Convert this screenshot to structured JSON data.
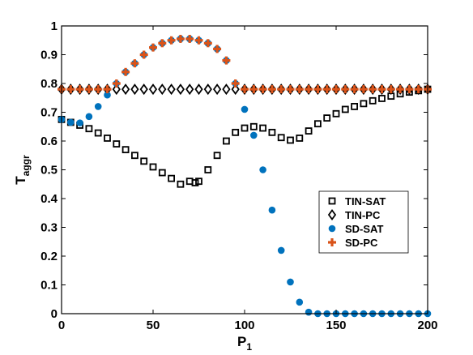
{
  "chart_data": {
    "type": "scatter",
    "xlabel": "P",
    "xlabel_sub": "1",
    "ylabel": "T",
    "ylabel_sub": "aggr",
    "xlim": [
      0,
      200
    ],
    "ylim": [
      0,
      1
    ],
    "xticks": [
      "0",
      "50",
      "100",
      "150",
      "200"
    ],
    "yticks": [
      "0",
      "0.1",
      "0.2",
      "0.3",
      "0.4",
      "0.5",
      "0.6",
      "0.7",
      "0.8",
      "0.9",
      "1"
    ],
    "grid": false,
    "legend_position": "lower-right",
    "series": [
      {
        "name": "TIN-SAT",
        "marker": "square-open",
        "color": "#000000",
        "x": [
          0,
          5,
          10,
          15,
          20,
          25,
          30,
          35,
          40,
          45,
          50,
          55,
          60,
          65,
          70,
          73,
          75,
          80,
          85,
          90,
          95,
          100,
          105,
          110,
          115,
          120,
          125,
          130,
          135,
          140,
          145,
          150,
          155,
          160,
          165,
          170,
          175,
          180,
          185,
          190,
          195,
          200
        ],
        "y": [
          0.675,
          0.665,
          0.655,
          0.643,
          0.628,
          0.61,
          0.59,
          0.57,
          0.55,
          0.53,
          0.51,
          0.49,
          0.47,
          0.45,
          0.46,
          0.455,
          0.46,
          0.5,
          0.55,
          0.6,
          0.63,
          0.645,
          0.65,
          0.645,
          0.63,
          0.612,
          0.603,
          0.61,
          0.635,
          0.66,
          0.68,
          0.695,
          0.71,
          0.72,
          0.73,
          0.74,
          0.748,
          0.756,
          0.764,
          0.77,
          0.775,
          0.78
        ]
      },
      {
        "name": "TIN-PC",
        "marker": "diamond-open",
        "color": "#000000",
        "x": [
          0,
          5,
          10,
          15,
          20,
          25,
          30,
          35,
          40,
          45,
          50,
          55,
          60,
          65,
          70,
          75,
          80,
          85,
          90,
          95,
          100,
          105,
          110,
          115,
          120,
          125,
          130,
          135,
          140,
          145,
          150,
          155,
          160,
          165,
          170,
          175,
          180,
          185,
          190,
          195,
          200
        ],
        "y": [
          0.78,
          0.78,
          0.78,
          0.78,
          0.78,
          0.78,
          0.78,
          0.78,
          0.78,
          0.78,
          0.78,
          0.78,
          0.78,
          0.78,
          0.78,
          0.78,
          0.78,
          0.78,
          0.78,
          0.78,
          0.78,
          0.78,
          0.78,
          0.78,
          0.78,
          0.78,
          0.78,
          0.78,
          0.78,
          0.78,
          0.78,
          0.78,
          0.78,
          0.78,
          0.78,
          0.78,
          0.78,
          0.78,
          0.78,
          0.78,
          0.78
        ]
      },
      {
        "name": "SD-SAT",
        "marker": "circle-filled",
        "color": "#0072BD",
        "x": [
          0,
          5,
          10,
          15,
          20,
          25,
          30,
          35,
          40,
          45,
          50,
          55,
          60,
          65,
          70,
          75,
          80,
          85,
          90,
          95,
          100,
          105,
          110,
          115,
          120,
          125,
          130,
          135,
          140,
          145,
          150,
          155,
          160,
          165,
          170,
          175,
          180,
          185,
          190,
          195,
          200
        ],
        "y": [
          0.675,
          0.665,
          0.663,
          0.685,
          0.72,
          0.76,
          0.8,
          0.84,
          0.87,
          0.9,
          0.925,
          0.94,
          0.95,
          0.955,
          0.955,
          0.95,
          0.94,
          0.92,
          0.88,
          0.8,
          0.71,
          0.62,
          0.5,
          0.36,
          0.22,
          0.11,
          0.04,
          0.005,
          0.0,
          0.0,
          0.0,
          0.0,
          0.0,
          0.0,
          0.0,
          0.0,
          0.0,
          0.0,
          0.0,
          0.0,
          0.0
        ]
      },
      {
        "name": "SD-PC",
        "marker": "plus-filled",
        "color": "#D95319",
        "x": [
          0,
          5,
          10,
          15,
          20,
          25,
          30,
          35,
          40,
          45,
          50,
          55,
          60,
          65,
          70,
          75,
          80,
          85,
          90,
          95,
          100,
          105,
          110,
          115,
          120,
          125,
          130,
          135,
          140,
          145,
          150,
          155,
          160,
          165,
          170,
          175,
          180,
          185,
          190,
          195,
          200
        ],
        "y": [
          0.78,
          0.78,
          0.78,
          0.78,
          0.78,
          0.78,
          0.8,
          0.84,
          0.87,
          0.9,
          0.925,
          0.94,
          0.95,
          0.955,
          0.955,
          0.95,
          0.94,
          0.92,
          0.88,
          0.8,
          0.78,
          0.78,
          0.78,
          0.78,
          0.78,
          0.78,
          0.78,
          0.78,
          0.78,
          0.78,
          0.78,
          0.78,
          0.78,
          0.78,
          0.78,
          0.78,
          0.78,
          0.78,
          0.78,
          0.78,
          0.78
        ]
      }
    ]
  }
}
